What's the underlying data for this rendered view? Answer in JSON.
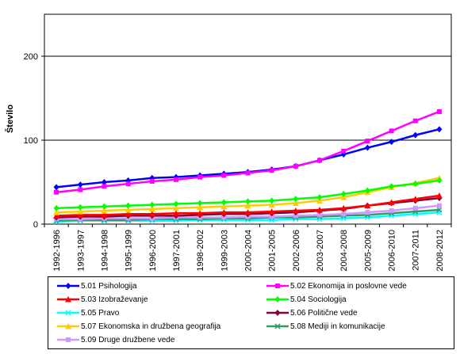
{
  "chart_data": {
    "type": "line",
    "title": "",
    "xlabel": "",
    "ylabel": "Število",
    "ylim": [
      0,
      250
    ],
    "yticks": [
      0,
      100,
      200
    ],
    "grid": "horizontal",
    "legend_position": "bottom",
    "categories": [
      "1992-1996",
      "1993-1997",
      "1994-1998",
      "1995-1999",
      "1996-2000",
      "1997-2001",
      "1998-2002",
      "1999-2003",
      "2000-2004",
      "2001-2005",
      "2002-2006",
      "2003-2007",
      "2004-2008",
      "2005-2009",
      "2006-2010",
      "2007-2011",
      "2008-2012"
    ],
    "series": [
      {
        "name": "5.01 Psihologija",
        "color": "#0000ff",
        "marker": "diamond",
        "values": [
          44,
          47,
          50,
          52,
          55,
          56,
          58,
          60,
          62,
          65,
          69,
          76,
          83,
          91,
          98,
          106,
          113
        ]
      },
      {
        "name": "5.02 Ekonomija in poslovne vede",
        "color": "#ff00ff",
        "marker": "square",
        "values": [
          38,
          41,
          45,
          48,
          51,
          53,
          56,
          58,
          61,
          64,
          69,
          76,
          87,
          99,
          111,
          123,
          134
        ]
      },
      {
        "name": "5.03 Izobraževanje",
        "color": "#ff0000",
        "marker": "triangle",
        "values": [
          10,
          11,
          11,
          12,
          12,
          13,
          13,
          14,
          14,
          15,
          16,
          17,
          19,
          22,
          26,
          30,
          34
        ]
      },
      {
        "name": "5.04 Sociologija",
        "color": "#00ff00",
        "marker": "diamond",
        "values": [
          19,
          20,
          21,
          22,
          23,
          24,
          25,
          26,
          27,
          28,
          30,
          32,
          36,
          40,
          45,
          48,
          52
        ]
      },
      {
        "name": "5.05 Pravo",
        "color": "#00ffff",
        "marker": "x",
        "values": [
          3,
          4,
          4,
          4,
          4,
          4,
          5,
          5,
          5,
          5,
          6,
          6,
          7,
          8,
          10,
          12,
          14
        ]
      },
      {
        "name": "5.06 Politične vede",
        "color": "#800040",
        "marker": "diamond",
        "values": [
          8,
          9,
          9,
          10,
          10,
          10,
          11,
          12,
          12,
          13,
          14,
          16,
          18,
          22,
          25,
          28,
          31
        ]
      },
      {
        "name": "5.07 Ekonomska in družbena geografija",
        "color": "#ffcc00",
        "marker": "triangle",
        "values": [
          14,
          15,
          16,
          17,
          18,
          19,
          20,
          21,
          22,
          23,
          25,
          28,
          32,
          38,
          44,
          49,
          55
        ]
      },
      {
        "name": "5.08 Mediji in komunikacije",
        "color": "#339966",
        "marker": "x",
        "values": [
          4,
          5,
          5,
          5,
          6,
          6,
          6,
          7,
          7,
          8,
          8,
          9,
          10,
          11,
          13,
          15,
          17
        ]
      },
      {
        "name": "5.09 Druge družbene vede",
        "color": "#cc99ff",
        "marker": "square",
        "values": [
          6,
          6,
          7,
          7,
          7,
          8,
          8,
          8,
          9,
          9,
          10,
          11,
          12,
          14,
          16,
          19,
          22
        ]
      }
    ]
  }
}
